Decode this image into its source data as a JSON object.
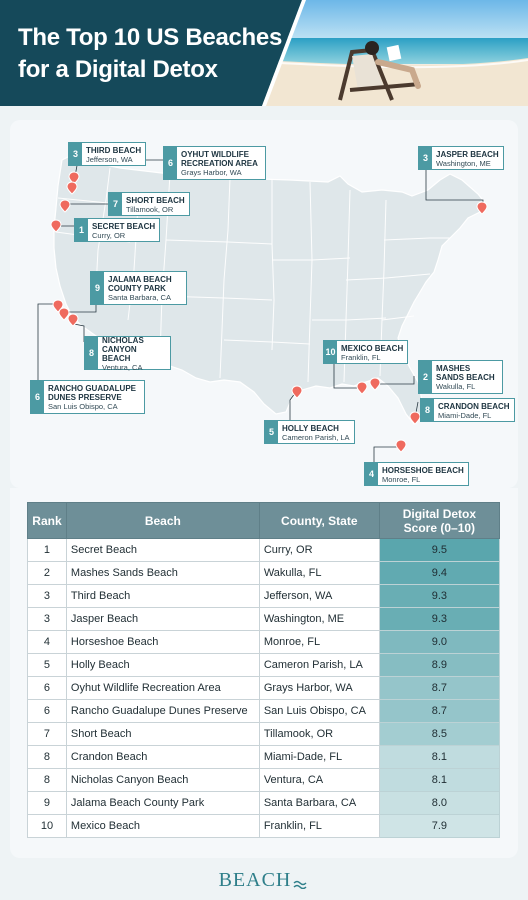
{
  "title_line1": "The Top 10 US Beaches",
  "title_line2": "for a Digital Detox",
  "colors": {
    "title_panel": "#15495a",
    "accent_teal": "#4c9aa3",
    "map_land": "#dfe7ea",
    "map_state_line": "#ffffff",
    "marker": "#ef6a5e",
    "table_header": "#6e8f98"
  },
  "map_labels": [
    {
      "rank": "3",
      "name": "Third Beach",
      "location": "Jefferson, WA"
    },
    {
      "rank": "6",
      "name": "Oyhut Wildlife Recreation Area",
      "location": "Grays Harbor, WA"
    },
    {
      "rank": "3",
      "name": "Jasper Beach",
      "location": "Washington, ME"
    },
    {
      "rank": "7",
      "name": "Short Beach",
      "location": "Tillamook, OR"
    },
    {
      "rank": "1",
      "name": "Secret Beach",
      "location": "Curry, OR"
    },
    {
      "rank": "9",
      "name": "Jalama Beach County Park",
      "location": "Santa Barbara, CA"
    },
    {
      "rank": "8",
      "name": "Nicholas Canyon Beach",
      "location": "Ventura, CA"
    },
    {
      "rank": "6",
      "name": "Rancho Guadalupe Dunes Preserve",
      "location": "San Luis Obispo, CA"
    },
    {
      "rank": "10",
      "name": "Mexico Beach",
      "location": "Franklin, FL"
    },
    {
      "rank": "2",
      "name": "Mashes Sands Beach",
      "location": "Wakulla, FL"
    },
    {
      "rank": "8",
      "name": "Crandon Beach",
      "location": "Miami-Dade, FL"
    },
    {
      "rank": "5",
      "name": "Holly Beach",
      "location": "Cameron Parish, LA"
    },
    {
      "rank": "4",
      "name": "Horseshoe Beach",
      "location": "Monroe, FL"
    }
  ],
  "table": {
    "headers": {
      "rank": "Rank",
      "beach": "Beach",
      "county": "County, State",
      "score_line1": "Digital Detox",
      "score_line2": "Score (0–10)"
    },
    "rows": [
      {
        "rank": "1",
        "beach": "Secret Beach",
        "county": "Curry, OR",
        "score": 9.5
      },
      {
        "rank": "2",
        "beach": "Mashes Sands Beach",
        "county": "Wakulla, FL",
        "score": 9.4
      },
      {
        "rank": "3",
        "beach": "Third Beach",
        "county": "Jefferson, WA",
        "score": 9.3
      },
      {
        "rank": "3",
        "beach": "Jasper Beach",
        "county": "Washington, ME",
        "score": 9.3
      },
      {
        "rank": "4",
        "beach": "Horseshoe Beach",
        "county": "Monroe, FL",
        "score": 9.0
      },
      {
        "rank": "5",
        "beach": "Holly Beach",
        "county": "Cameron Parish, LA",
        "score": 8.9
      },
      {
        "rank": "6",
        "beach": "Oyhut Wildlife Recreation Area",
        "county": "Grays Harbor, WA",
        "score": 8.7
      },
      {
        "rank": "6",
        "beach": "Rancho Guadalupe Dunes Preserve",
        "county": "San Luis Obispo, CA",
        "score": 8.7
      },
      {
        "rank": "7",
        "beach": "Short Beach",
        "county": "Tillamook, OR",
        "score": 8.5
      },
      {
        "rank": "8",
        "beach": "Crandon Beach",
        "county": "Miami-Dade, FL",
        "score": 8.1
      },
      {
        "rank": "8",
        "beach": "Nicholas Canyon Beach",
        "county": "Ventura, CA",
        "score": 8.1
      },
      {
        "rank": "9",
        "beach": "Jalama Beach County Park",
        "county": "Santa Barbara, CA",
        "score": 8.0
      },
      {
        "rank": "10",
        "beach": "Mexico Beach",
        "county": "Franklin, FL",
        "score": 7.9
      }
    ]
  },
  "score_display": [
    "9.5",
    "9.4",
    "9.3",
    "9.3",
    "9.0",
    "8.9",
    "8.7",
    "8.7",
    "8.5",
    "8.1",
    "8.1",
    "8.0",
    "7.9"
  ],
  "brand": "BEACH"
}
